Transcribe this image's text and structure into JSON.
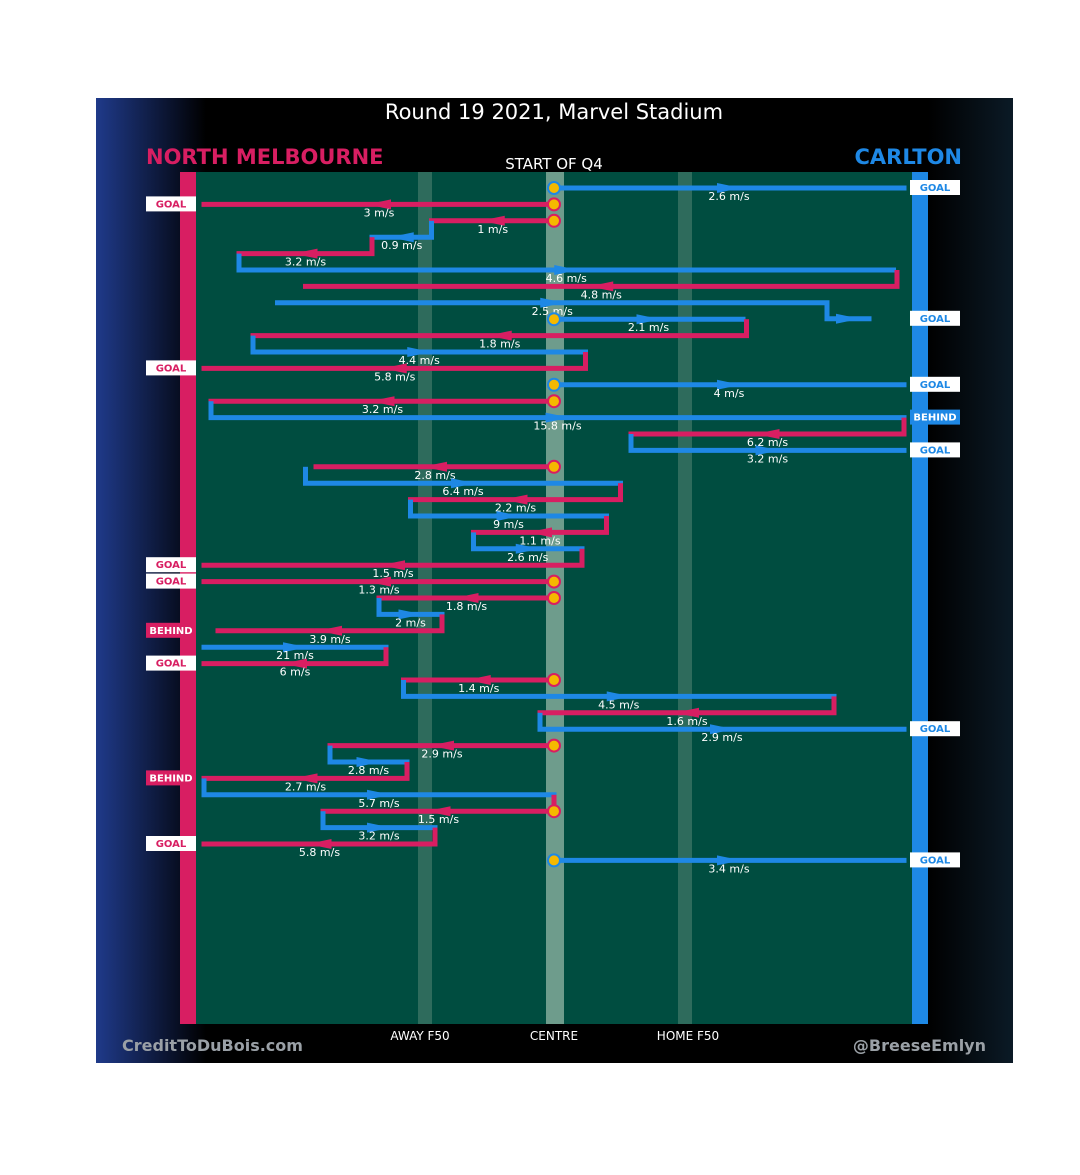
{
  "header": {
    "title": "Round 19 2021, Marvel Stadium",
    "subtitle": "START OF Q4",
    "home_team": "NORTH MELBOURNE",
    "away_team": "CARLTON"
  },
  "footer": {
    "left_credit": "CreditToDuBois.com",
    "right_credit": "@BreeseEmlyn"
  },
  "colors": {
    "north": "#d81e62",
    "carlton": "#1e88e5",
    "field": "#004d40",
    "background": "#000000",
    "marker": "#f5b800"
  },
  "chart_data": {
    "type": "line",
    "title": "Round 19 2021, Marvel Stadium",
    "subtitle": "START OF Q4",
    "teams": [
      {
        "name": "NORTH MELBOURNE",
        "color": "#d81e62"
      },
      {
        "name": "CARLTON",
        "color": "#1e88e5"
      }
    ],
    "x_axis_labels": [
      "AWAY F50",
      "CENTRE",
      "HOME F50"
    ],
    "chains": [
      {
        "team": "carlton",
        "start": 0.0,
        "outcome": "GOAL",
        "segments": [
          {
            "speed": "2.6 m/s",
            "to": 1.0
          }
        ]
      },
      {
        "team": "north",
        "start": 0.0,
        "outcome": "GOAL",
        "segments": [
          {
            "speed": "3 m/s",
            "to": -1.0
          }
        ]
      },
      {
        "team": "north",
        "start": 0.0,
        "segments": [
          {
            "speed": "1 m/s",
            "to": -0.35
          }
        ]
      },
      {
        "team": "carlton",
        "start": -0.35,
        "segments": [
          {
            "speed": "0.9 m/s",
            "to": -0.52
          }
        ]
      },
      {
        "team": "north",
        "start": -0.52,
        "segments": [
          {
            "speed": "3.2 m/s",
            "to": -0.9
          }
        ]
      },
      {
        "team": "carlton",
        "start": -0.9,
        "segments": [
          {
            "speed": "4.6 m/s",
            "to": 0.97
          }
        ]
      },
      {
        "team": "north",
        "start": 0.98,
        "segments": [
          {
            "speed": "4.8 m/s",
            "to": -0.71
          }
        ]
      },
      {
        "team": "carlton",
        "start": -0.79,
        "segments": [
          {
            "speed": "2.5 m/s",
            "to": 0.78
          },
          {
            "to": 0.9
          }
        ],
        "outcome": "GOAL"
      },
      {
        "team": "carlton",
        "start": 0.0,
        "segments": [
          {
            "speed": "2.1 m/s",
            "to": 0.54
          }
        ]
      },
      {
        "team": "north",
        "start": 0.55,
        "segments": [
          {
            "speed": "1.8 m/s",
            "to": -0.86
          }
        ]
      },
      {
        "team": "carlton",
        "start": -0.86,
        "segments": [
          {
            "speed": "4.4 m/s",
            "to": 0.09
          }
        ]
      },
      {
        "team": "north",
        "start": 0.09,
        "outcome": "GOAL",
        "segments": [
          {
            "speed": "5.8 m/s",
            "to": -1.0
          }
        ]
      },
      {
        "team": "carlton",
        "start": 0.0,
        "outcome": "GOAL",
        "segments": [
          {
            "speed": "4 m/s",
            "to": 1.0
          }
        ]
      },
      {
        "team": "north",
        "start": 0.0,
        "segments": [
          {
            "speed": "3.2 m/s",
            "to": -0.98
          }
        ]
      },
      {
        "team": "carlton",
        "start": -0.98,
        "outcome": "BEHIND",
        "segments": [
          {
            "speed": "15.8 m/s",
            "to": 1.0
          }
        ]
      },
      {
        "team": "north",
        "start": 1.0,
        "segments": [
          {
            "speed": "6.2 m/s",
            "to": 0.22
          }
        ]
      },
      {
        "team": "carlton",
        "start": 0.22,
        "outcome": "GOAL",
        "segments": [
          {
            "speed": "3.2 m/s",
            "to": 1.0
          }
        ]
      },
      {
        "team": "north",
        "start": 0.0,
        "segments": [
          {
            "speed": "2.8 m/s",
            "to": -0.68
          }
        ]
      },
      {
        "team": "carlton",
        "start": -0.71,
        "segments": [
          {
            "speed": "6.4 m/s",
            "to": 0.19
          }
        ]
      },
      {
        "team": "north",
        "start": 0.19,
        "segments": [
          {
            "speed": "2.2 m/s",
            "to": -0.41
          }
        ]
      },
      {
        "team": "carlton",
        "start": -0.41,
        "segments": [
          {
            "speed": "9 m/s",
            "to": 0.15
          }
        ]
      },
      {
        "team": "north",
        "start": 0.15,
        "segments": [
          {
            "speed": "1.1 m/s",
            "to": -0.23
          }
        ]
      },
      {
        "team": "carlton",
        "start": -0.23,
        "segments": [
          {
            "speed": "2.6 m/s",
            "to": 0.08
          }
        ]
      },
      {
        "team": "north",
        "start": 0.08,
        "outcome": "GOAL",
        "segments": [
          {
            "speed": "1.5 m/s",
            "to": -1.0
          }
        ]
      },
      {
        "team": "north",
        "start": 0.0,
        "outcome": "GOAL",
        "segments": [
          {
            "speed": "1.3 m/s",
            "to": -1.0
          }
        ]
      },
      {
        "team": "north",
        "start": 0.0,
        "segments": [
          {
            "speed": "1.8 m/s",
            "to": -0.5
          }
        ]
      },
      {
        "team": "carlton",
        "start": -0.5,
        "segments": [
          {
            "speed": "2 m/s",
            "to": -0.32
          }
        ]
      },
      {
        "team": "north",
        "start": -0.32,
        "outcome": "BEHIND",
        "segments": [
          {
            "speed": "3.9 m/s",
            "to": -0.96
          }
        ]
      },
      {
        "team": "carlton",
        "start": -1.0,
        "segments": [
          {
            "speed": "21 m/s",
            "to": -0.48
          }
        ]
      },
      {
        "team": "north",
        "start": -0.48,
        "outcome": "GOAL",
        "segments": [
          {
            "speed": "6 m/s",
            "to": -1.0
          }
        ]
      },
      {
        "team": "north",
        "start": 0.0,
        "segments": [
          {
            "speed": "1.4 m/s",
            "to": -0.43
          }
        ]
      },
      {
        "team": "carlton",
        "start": -0.43,
        "segments": [
          {
            "speed": "4.5 m/s",
            "to": 0.8
          }
        ]
      },
      {
        "team": "north",
        "start": 0.8,
        "segments": [
          {
            "speed": "1.6 m/s",
            "to": -0.04
          }
        ]
      },
      {
        "team": "carlton",
        "start": -0.04,
        "outcome": "GOAL",
        "segments": [
          {
            "speed": "2.9 m/s",
            "to": 1.0
          }
        ]
      },
      {
        "team": "north",
        "start": 0.0,
        "segments": [
          {
            "speed": "2.9 m/s",
            "to": -0.64
          }
        ]
      },
      {
        "team": "carlton",
        "start": -0.64,
        "segments": [
          {
            "speed": "2.8 m/s",
            "to": -0.42
          }
        ]
      },
      {
        "team": "north",
        "start": -0.42,
        "outcome": "BEHIND",
        "segments": [
          {
            "speed": "2.7 m/s",
            "to": -1.0
          }
        ]
      },
      {
        "team": "carlton",
        "start": -1.0,
        "segments": [
          {
            "speed": "5.7 m/s",
            "to": 0.0
          }
        ]
      },
      {
        "team": "north",
        "start": 0.0,
        "segments": [
          {
            "speed": "1.5 m/s",
            "to": -0.66
          }
        ]
      },
      {
        "team": "carlton",
        "start": -0.66,
        "segments": [
          {
            "speed": "3.2 m/s",
            "to": -0.34
          }
        ]
      },
      {
        "team": "north",
        "start": -0.34,
        "outcome": "GOAL",
        "segments": [
          {
            "speed": "5.8 m/s",
            "to": -1.0
          }
        ]
      },
      {
        "team": "carlton",
        "start": 0.0,
        "outcome": "GOAL",
        "segments": [
          {
            "speed": "3.4 m/s",
            "to": 1.0
          }
        ]
      }
    ]
  }
}
